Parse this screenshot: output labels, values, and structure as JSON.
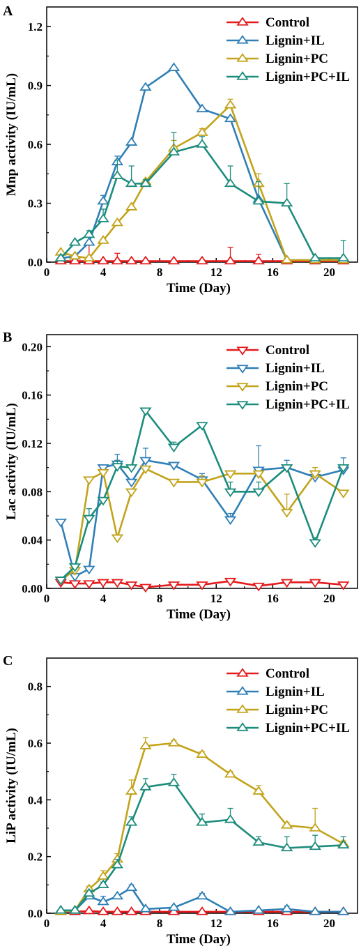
{
  "chart_data": [
    {
      "panel_label": "A",
      "type": "line",
      "marker": "triangle-up",
      "xlabel": "Time (Day)",
      "ylabel": "Mnp activity (IU/mL)",
      "xlim": [
        0,
        22
      ],
      "ylim": [
        0,
        1.3
      ],
      "xticks": [
        0,
        4,
        8,
        12,
        16,
        20
      ],
      "yticks": [
        0.0,
        0.3,
        0.6,
        0.9,
        1.2
      ],
      "ytick_labels": [
        "0.0",
        "0.3",
        "0.6",
        "0.9",
        "1.2"
      ],
      "legend_position": "top-right",
      "grid": false,
      "series": [
        {
          "name": "Control",
          "color": "#e41a1c",
          "x": [
            1,
            2,
            3,
            4,
            5,
            6,
            7,
            9,
            11,
            13,
            15,
            17,
            19,
            21
          ],
          "y": [
            0.005,
            0.005,
            0.005,
            0.005,
            0.005,
            0.005,
            0.005,
            0.005,
            0.005,
            0.005,
            0.005,
            0.005,
            0.005,
            0.005
          ],
          "err": [
            0,
            0,
            0.09,
            0,
            0.04,
            0,
            0,
            0,
            0,
            0.07,
            0.035,
            0,
            0,
            0
          ]
        },
        {
          "name": "Lignin+IL",
          "color": "#2f7fb6",
          "x": [
            1,
            2,
            3,
            4,
            5,
            6,
            7,
            9,
            11,
            13,
            15,
            17,
            19,
            21
          ],
          "y": [
            0.02,
            0.03,
            0.1,
            0.31,
            0.51,
            0.61,
            0.89,
            0.99,
            0.78,
            0.73,
            0.32,
            0.01,
            0.01,
            0.01
          ],
          "err": [
            0,
            0,
            0,
            0.03,
            0.03,
            0,
            0,
            0,
            0,
            0,
            0,
            0,
            0,
            0
          ]
        },
        {
          "name": "Lignin+PC",
          "color": "#c2a31b",
          "x": [
            1,
            2,
            3,
            4,
            5,
            6,
            7,
            9,
            11,
            13,
            15,
            17,
            19,
            21
          ],
          "y": [
            0.05,
            0.03,
            0.02,
            0.11,
            0.2,
            0.28,
            0.41,
            0.58,
            0.66,
            0.8,
            0.4,
            0.01,
            0.01,
            0.01
          ],
          "err": [
            0,
            0,
            0,
            0,
            0,
            0,
            0,
            0.04,
            0.02,
            0.03,
            0.05,
            0,
            0,
            0
          ]
        },
        {
          "name": "Lignin+PC+IL",
          "color": "#1c8c7c",
          "x": [
            1,
            2,
            3,
            4,
            5,
            6,
            7,
            9,
            11,
            13,
            15,
            17,
            19,
            21
          ],
          "y": [
            0.02,
            0.1,
            0.14,
            0.22,
            0.44,
            0.4,
            0.4,
            0.56,
            0.6,
            0.4,
            0.31,
            0.3,
            0.02,
            0.02
          ],
          "err": [
            0,
            0,
            0.02,
            0.05,
            0.08,
            0.09,
            0.02,
            0.1,
            0.04,
            0.09,
            0.1,
            0.1,
            0,
            0.09
          ]
        }
      ]
    },
    {
      "panel_label": "B",
      "type": "line",
      "marker": "triangle-down",
      "xlabel": "Time (Day)",
      "ylabel": "Lac activity (IU/mL)",
      "xlim": [
        0,
        22
      ],
      "ylim": [
        0,
        0.21
      ],
      "xticks": [
        0,
        4,
        8,
        12,
        16,
        20
      ],
      "yticks": [
        0.0,
        0.04,
        0.08,
        0.12,
        0.16,
        0.2
      ],
      "ytick_labels": [
        "0.00",
        "0.04",
        "0.08",
        "0.12",
        "0.16",
        "0.20"
      ],
      "legend_position": "top-right",
      "grid": false,
      "series": [
        {
          "name": "Control",
          "color": "#e41a1c",
          "x": [
            1,
            2,
            3,
            4,
            5,
            6,
            7,
            9,
            11,
            13,
            15,
            17,
            19,
            21
          ],
          "y": [
            0.005,
            0.004,
            0.004,
            0.005,
            0.005,
            0.003,
            0.001,
            0.003,
            0.003,
            0.006,
            0.002,
            0.005,
            0.005,
            0.003
          ],
          "err": [
            0,
            0,
            0,
            0,
            0,
            0,
            0,
            0,
            0,
            0,
            0,
            0,
            0,
            0
          ]
        },
        {
          "name": "Lignin+IL",
          "color": "#2f7fb6",
          "x": [
            1,
            2,
            3,
            4,
            5,
            6,
            7,
            9,
            11,
            13,
            15,
            17,
            19,
            21
          ],
          "y": [
            0.055,
            0.01,
            0.016,
            0.1,
            0.103,
            0.088,
            0.106,
            0.102,
            0.09,
            0.057,
            0.098,
            0.1,
            0.092,
            0.098
          ],
          "err": [
            0,
            0,
            0,
            0,
            0.008,
            0,
            0.01,
            0,
            0.005,
            0.005,
            0.02,
            0.006,
            0,
            0.01
          ]
        },
        {
          "name": "Lignin+PC",
          "color": "#c2a31b",
          "x": [
            1,
            2,
            3,
            4,
            5,
            6,
            7,
            9,
            11,
            13,
            15,
            17,
            19,
            21
          ],
          "y": [
            0.007,
            0.015,
            0.09,
            0.096,
            0.042,
            0.08,
            0.099,
            0.088,
            0.088,
            0.095,
            0.095,
            0.063,
            0.095,
            0.079
          ],
          "err": [
            0,
            0,
            0,
            0,
            0,
            0,
            0,
            0,
            0.005,
            0,
            0,
            0.015,
            0.005,
            0
          ]
        },
        {
          "name": "Lignin+PC+IL",
          "color": "#1c8c7c",
          "x": [
            1,
            2,
            3,
            4,
            5,
            6,
            7,
            9,
            11,
            13,
            15,
            17,
            19,
            21
          ],
          "y": [
            0.007,
            0.018,
            0.058,
            0.073,
            0.101,
            0.1,
            0.147,
            0.117,
            0.135,
            0.08,
            0.08,
            0.1,
            0.038,
            0.1
          ],
          "err": [
            0,
            0,
            0.008,
            0,
            0.005,
            0,
            0,
            0.004,
            0,
            0.008,
            0.008,
            0,
            0.004,
            0
          ]
        }
      ]
    },
    {
      "panel_label": "C",
      "type": "line",
      "marker": "triangle-up",
      "xlabel": "Time (Day)",
      "ylabel": "LiP activity (IU/mL)",
      "xlim": [
        0,
        22
      ],
      "ylim": [
        0,
        0.9
      ],
      "xticks": [
        0,
        4,
        8,
        12,
        16,
        20
      ],
      "yticks": [
        0.0,
        0.2,
        0.4,
        0.6,
        0.8
      ],
      "ytick_labels": [
        "0.0",
        "0.2",
        "0.4",
        "0.6",
        "0.8"
      ],
      "legend_position": "top-right",
      "grid": false,
      "series": [
        {
          "name": "Control",
          "color": "#e41a1c",
          "x": [
            1,
            2,
            3,
            4,
            5,
            6,
            7,
            9,
            11,
            13,
            15,
            17,
            19,
            21
          ],
          "y": [
            0.005,
            0.005,
            0.008,
            0.005,
            0.005,
            0.005,
            0.005,
            0.005,
            0.005,
            0.005,
            0.005,
            0.005,
            0.005,
            0.005
          ],
          "err": [
            0,
            0,
            0,
            0,
            0,
            0,
            0,
            0,
            0,
            0,
            0,
            0,
            0,
            0
          ]
        },
        {
          "name": "Lignin+IL",
          "color": "#2f7fb6",
          "x": [
            1,
            2,
            3,
            4,
            5,
            6,
            7,
            9,
            11,
            13,
            15,
            17,
            19,
            21
          ],
          "y": [
            0.01,
            0.01,
            0.06,
            0.04,
            0.06,
            0.09,
            0.015,
            0.02,
            0.06,
            0.005,
            0.01,
            0.015,
            0.005,
            0.005
          ],
          "err": [
            0,
            0,
            0.01,
            0.02,
            0,
            0.01,
            0,
            0,
            0.01,
            0,
            0,
            0.01,
            0,
            0
          ]
        },
        {
          "name": "Lignin+PC",
          "color": "#c2a31b",
          "x": [
            1,
            2,
            3,
            4,
            5,
            6,
            7,
            9,
            11,
            13,
            15,
            17,
            19,
            21
          ],
          "y": [
            0.005,
            0.01,
            0.085,
            0.13,
            0.19,
            0.43,
            0.59,
            0.6,
            0.56,
            0.49,
            0.43,
            0.31,
            0.3,
            0.245
          ],
          "err": [
            0,
            0,
            0.01,
            0.02,
            0.02,
            0.04,
            0.03,
            0.01,
            0.01,
            0.01,
            0.02,
            0.01,
            0.07,
            0.01
          ]
        },
        {
          "name": "Lignin+PC+IL",
          "color": "#1c8c7c",
          "x": [
            1,
            2,
            3,
            4,
            5,
            6,
            7,
            9,
            11,
            13,
            15,
            17,
            19,
            21
          ],
          "y": [
            0.01,
            0.01,
            0.07,
            0.1,
            0.17,
            0.32,
            0.445,
            0.46,
            0.32,
            0.33,
            0.25,
            0.23,
            0.235,
            0.24
          ],
          "err": [
            0,
            0,
            0.01,
            0.01,
            0.02,
            0.02,
            0.03,
            0.03,
            0.03,
            0.04,
            0.02,
            0.04,
            0.04,
            0.03
          ]
        }
      ]
    }
  ]
}
